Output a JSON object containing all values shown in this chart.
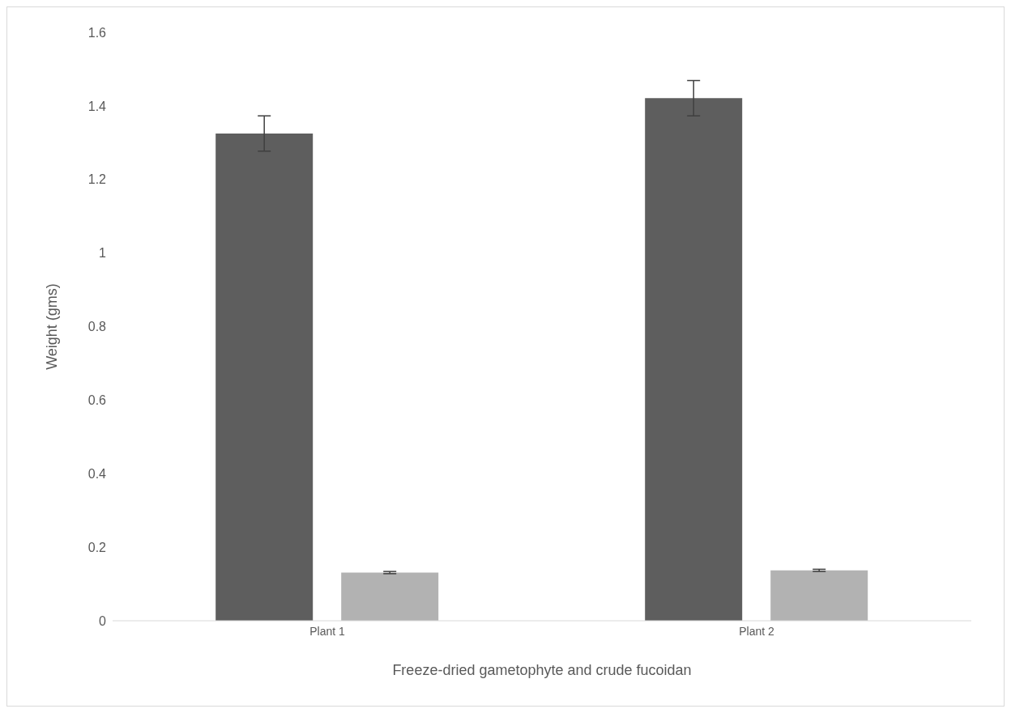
{
  "chart_data": {
    "type": "bar",
    "xlabel": "Freeze-dried gametophyte and crude fucoidan",
    "ylabel": "Weight (gms)",
    "categories": [
      "Plant 1",
      "Plant 2"
    ],
    "series": [
      {
        "color": "#5e5e5e",
        "values": [
          1.325,
          1.421
        ],
        "errors": [
          0.048,
          0.048
        ]
      },
      {
        "color": "#b2b2b2",
        "values": [
          0.131,
          0.137
        ],
        "errors": [
          0.003,
          0.003
        ]
      }
    ],
    "ylim": [
      0,
      1.6
    ],
    "yticks": [
      0,
      0.2,
      0.4,
      0.6,
      0.8,
      1,
      1.2,
      1.4,
      1.6
    ],
    "grid": false,
    "legend": false
  }
}
